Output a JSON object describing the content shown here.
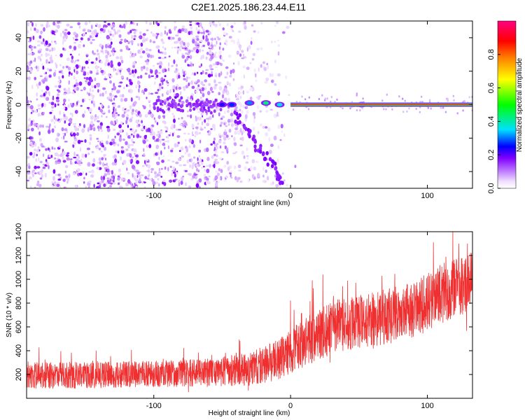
{
  "figure": {
    "title": "C2E1.2025.186.23.44.E11"
  },
  "chart_data": [
    {
      "type": "heatmap",
      "xlabel": "Height of straight line (km)",
      "ylabel": "Frequency (Hz)",
      "xlim": [
        -193,
        133
      ],
      "ylim": [
        -50,
        50
      ],
      "xticks": [
        -100,
        0,
        100
      ],
      "xtick_labels": [
        "-100",
        "0",
        "100"
      ],
      "yticks": [
        -40,
        -20,
        0,
        20,
        40
      ],
      "ytick_labels": [
        "-40",
        "-20",
        "0",
        "20",
        "40"
      ],
      "grid": false,
      "colorbar": {
        "label": "Normalized spectral amplitude",
        "range": [
          0,
          1
        ],
        "ticks": [
          0,
          0.2,
          0.4,
          0.6,
          0.8
        ],
        "tick_labels": [
          "0.0",
          "0.2",
          "0.4",
          "0.6",
          "0.8"
        ],
        "colormap": [
          "#ffffff",
          "#c080ff",
          "#8000ff",
          "#0000ff",
          "#00e0ff",
          "#00ff00",
          "#ffff00",
          "#ff8000",
          "#ff0000",
          "#ff0080"
        ]
      },
      "features": {
        "noise_region_x": [
          -193,
          0
        ],
        "dense_noise_x": [
          -193,
          -55
        ],
        "tone_frequency_hz": 0,
        "tone_start_x": 0,
        "tone_end_x": 133,
        "tone_amplitude": 0.9,
        "chirp_track": {
          "x": [
            -40,
            -32,
            -25,
            -18,
            -10,
            -5
          ],
          "y": [
            -5,
            -15,
            -25,
            -32,
            -40,
            -48
          ]
        },
        "bright_blobs": [
          {
            "x": -50,
            "y": 0,
            "amplitude": 0.3
          },
          {
            "x": -43,
            "y": 0,
            "amplitude": 0.35
          },
          {
            "x": -30,
            "y": 1,
            "amplitude": 0.4
          },
          {
            "x": -18,
            "y": 1,
            "amplitude": 0.5
          },
          {
            "x": -8,
            "y": 0,
            "amplitude": 0.45
          },
          {
            "x": 52,
            "y": 0,
            "amplitude": 0.6
          }
        ]
      }
    },
    {
      "type": "line",
      "xlabel": "Height of straight line (km)",
      "ylabel": "SNR (10 * v/v)",
      "xlim": [
        -193,
        133
      ],
      "ylim": [
        0,
        1400
      ],
      "xticks": [
        -100,
        0,
        100
      ],
      "xtick_labels": [
        "-100",
        "0",
        "100"
      ],
      "yticks": [
        200,
        400,
        600,
        800,
        1000,
        1200,
        1400
      ],
      "ytick_labels": [
        "200",
        "400",
        "600",
        "800",
        "1000",
        "1200",
        "1400"
      ],
      "grid": false,
      "series_color": "#f03030",
      "trend": {
        "x": [
          -193,
          -150,
          -100,
          -60,
          -30,
          -10,
          10,
          30,
          60,
          90,
          110,
          133
        ],
        "mean": [
          190,
          195,
          205,
          215,
          245,
          320,
          470,
          600,
          650,
          740,
          880,
          980
        ],
        "spread": [
          160,
          160,
          160,
          170,
          200,
          240,
          300,
          320,
          340,
          340,
          360,
          360
        ]
      }
    }
  ]
}
